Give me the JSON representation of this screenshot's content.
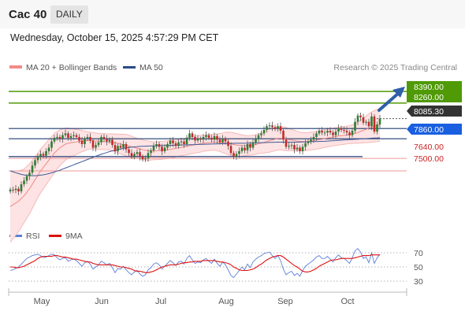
{
  "header": {
    "title": "Cac 40",
    "interval": "DAILY"
  },
  "timestamp": "Wednesday, October 15, 2025 4:57:29 PM CET",
  "legend": {
    "bollinger": {
      "label": "MA 20 + Bollinger Bands",
      "color": "#f08a8a"
    },
    "ma50": {
      "label": "MA 50",
      "color": "#2a4a8a"
    }
  },
  "credit": "Research © 2025 Trading Central",
  "rsi_legend": {
    "rsi": {
      "label": "RSI",
      "color": "#5b7fd8"
    },
    "ma9": {
      "label": "9MA",
      "color": "#e01010"
    }
  },
  "levels": [
    {
      "label": "8390.00",
      "price": 8390,
      "style": "green"
    },
    {
      "label": "8260.00",
      "price": 8260,
      "style": "green"
    },
    {
      "label": "8085.30",
      "price": 8085.3,
      "style": "dark"
    },
    {
      "label": "7860.00",
      "price": 7860,
      "style": "blue"
    },
    {
      "label": "7640.00",
      "price": 7640,
      "style": "red"
    },
    {
      "label": "7500.00",
      "price": 7500,
      "style": "red"
    }
  ],
  "colors": {
    "green": "#4f9a06",
    "blue": "#1a5fe0",
    "dark": "#333333",
    "red": "#cc2222",
    "candle_up": "#2e7d32",
    "candle_down": "#c62828",
    "band_fill": "#fde3e3",
    "hline": "#1f3b73",
    "arrow": "#2f5fa8"
  },
  "chart_data": [
    {
      "type": "candlestick",
      "title": "Cac 40",
      "x_labels": [
        "May",
        "Jun",
        "Jul",
        "Aug",
        "Sep",
        "Oct"
      ],
      "ylim": [
        6900,
        8550
      ],
      "series": [
        {
          "name": "MA 20 + Bollinger Bands"
        },
        {
          "name": "MA 50"
        }
      ],
      "close": [
        7290,
        7285,
        7300,
        7270,
        7350,
        7390,
        7440,
        7480,
        7560,
        7620,
        7660,
        7690,
        7670,
        7720,
        7760,
        7830,
        7870,
        7880,
        7860,
        7900,
        7920,
        7870,
        7890,
        7900,
        7880,
        7840,
        7800,
        7860,
        7880,
        7840,
        7760,
        7790,
        7820,
        7880,
        7860,
        7830,
        7850,
        7790,
        7720,
        7780,
        7760,
        7800,
        7740,
        7700,
        7660,
        7690,
        7710,
        7660,
        7630,
        7640,
        7700,
        7730,
        7780,
        7800,
        7770,
        7720,
        7760,
        7800,
        7840,
        7810,
        7780,
        7820,
        7830,
        7800,
        7870,
        7920,
        7880,
        7840,
        7860,
        7850,
        7880,
        7900,
        7870,
        7850,
        7890,
        7850,
        7820,
        7860,
        7830,
        7780,
        7700,
        7660,
        7690,
        7720,
        7760,
        7730,
        7800,
        7760,
        7820,
        7860,
        7900,
        7920,
        7960,
        8000,
        8010,
        7990,
        7970,
        8000,
        7950,
        7850,
        7770,
        7780,
        7790,
        7740,
        7760,
        7720,
        7770,
        7810,
        7830,
        7850,
        7880,
        7920,
        7950,
        7930,
        7930,
        7950,
        7930,
        7900,
        7940,
        7980,
        7960,
        7950,
        7930,
        7900,
        7950,
        8050,
        8120,
        8100,
        8040,
        8050,
        8000,
        8110,
        7940,
        8020,
        8085
      ],
      "ma20": [
        7100,
        7120,
        7140,
        7160,
        7190,
        7220,
        7260,
        7300,
        7350,
        7400,
        7450,
        7500,
        7540,
        7580,
        7620,
        7660,
        7700,
        7730,
        7760,
        7780,
        7800,
        7810,
        7815,
        7820,
        7825,
        7830,
        7835,
        7835,
        7840,
        7840,
        7838,
        7835,
        7832,
        7830,
        7828,
        7826,
        7824,
        7820,
        7814,
        7808,
        7800,
        7795,
        7788,
        7780,
        7770,
        7762,
        7755,
        7746,
        7738,
        7730,
        7728,
        7726,
        7725,
        7726,
        7728,
        7730,
        7734,
        7738,
        7742,
        7746,
        7752,
        7758,
        7764,
        7770,
        7776,
        7782,
        7788,
        7794,
        7800,
        7805,
        7810,
        7814,
        7818,
        7820,
        7822,
        7820,
        7818,
        7815,
        7812,
        7808,
        7802,
        7796,
        7790,
        7786,
        7784,
        7783,
        7784,
        7786,
        7790,
        7796,
        7804,
        7812,
        7820,
        7830,
        7840,
        7848,
        7856,
        7864,
        7866,
        7862,
        7856,
        7850,
        7845,
        7840,
        7834,
        7830,
        7828,
        7828,
        7830,
        7834,
        7838,
        7844,
        7850,
        7856,
        7862,
        7868,
        7874,
        7880,
        7886,
        7890,
        7894,
        7898,
        7902,
        7906,
        7912,
        7920,
        7930,
        7942,
        7954,
        7966,
        7978,
        7990,
        8000,
        8008,
        8016
      ],
      "ma50": [
        7500,
        7490,
        7480,
        7470,
        7460,
        7455,
        7450,
        7448,
        7446,
        7446,
        7448,
        7452,
        7456,
        7462,
        7470,
        7478,
        7488,
        7498,
        7508,
        7520,
        7532,
        7544,
        7556,
        7568,
        7580,
        7592,
        7604,
        7616,
        7628,
        7640,
        7652,
        7664,
        7676,
        7686,
        7696,
        7706,
        7716,
        7724,
        7732,
        7740,
        7746,
        7752,
        7758,
        7762,
        7766,
        7770,
        7772,
        7774,
        7776,
        7777,
        7778,
        7779,
        7780,
        7781,
        7782,
        7783,
        7784,
        7785,
        7786,
        7787,
        7788,
        7789,
        7790,
        7791,
        7792,
        7793,
        7794,
        7795,
        7796,
        7797,
        7798,
        7799,
        7800,
        7801,
        7802,
        7803,
        7804,
        7805,
        7806,
        7807,
        7808,
        7809,
        7810,
        7810,
        7810,
        7810,
        7811,
        7812,
        7813,
        7814,
        7815,
        7816,
        7817,
        7818,
        7819,
        7820,
        7821,
        7822,
        7822,
        7822,
        7822,
        7822,
        7822,
        7822,
        7822,
        7823,
        7824,
        7825,
        7826,
        7827,
        7828,
        7829,
        7830,
        7831,
        7832,
        7834,
        7836,
        7838,
        7840,
        7842,
        7844,
        7846,
        7848,
        7850,
        7852,
        7854,
        7856,
        7858,
        7860,
        7862,
        7864,
        7866,
        7868,
        7870,
        7872
      ],
      "band_width": [
        400,
        380,
        360,
        340,
        320,
        300,
        290,
        280,
        270,
        260,
        250,
        245,
        240,
        235,
        230,
        225,
        220,
        210,
        200,
        190,
        180,
        170,
        160,
        150,
        140,
        130,
        120,
        110,
        100,
        95,
        90,
        90,
        90,
        90,
        90,
        90,
        90,
        95,
        100,
        105,
        110,
        115,
        120,
        120,
        120,
        115,
        110,
        110,
        110,
        110,
        110,
        105,
        100,
        100,
        100,
        100,
        100,
        100,
        100,
        100,
        95,
        95,
        95,
        95,
        95,
        95,
        95,
        95,
        95,
        95,
        90,
        90,
        90,
        90,
        90,
        95,
        100,
        110,
        120,
        125,
        130,
        130,
        130,
        125,
        120,
        115,
        110,
        110,
        110,
        110,
        110,
        115,
        120,
        125,
        130,
        130,
        130,
        130,
        130,
        130,
        130,
        125,
        120,
        115,
        110,
        105,
        100,
        100,
        100,
        100,
        100,
        100,
        100,
        100,
        100,
        100,
        100,
        100,
        100,
        100,
        100,
        100,
        100,
        100,
        105,
        110,
        120,
        130,
        140,
        150,
        160,
        170,
        175,
        180,
        185
      ],
      "levels": [
        8390,
        8260,
        8085.3,
        7860,
        7640,
        7500
      ]
    },
    {
      "type": "line",
      "title": "RSI",
      "yticks": [
        70,
        50,
        30
      ],
      "ylim": [
        20,
        80
      ],
      "series": [
        {
          "name": "RSI",
          "values": [
            45,
            46,
            48,
            50,
            54,
            58,
            62,
            64,
            66,
            67,
            68,
            66,
            63,
            64,
            66,
            68,
            67,
            63,
            60,
            62,
            63,
            58,
            60,
            61,
            59,
            55,
            51,
            56,
            58,
            54,
            47,
            50,
            53,
            58,
            56,
            53,
            55,
            49,
            42,
            48,
            47,
            51,
            46,
            42,
            39,
            43,
            45,
            40,
            37,
            39,
            46,
            49,
            54,
            56,
            53,
            47,
            51,
            55,
            59,
            56,
            52,
            57,
            58,
            54,
            62,
            66,
            60,
            55,
            57,
            56,
            60,
            62,
            58,
            55,
            61,
            55,
            51,
            57,
            53,
            46,
            38,
            35,
            40,
            45,
            50,
            46,
            54,
            49,
            57,
            61,
            64,
            66,
            69,
            70,
            71,
            66,
            62,
            66,
            59,
            47,
            39,
            42,
            44,
            38,
            41,
            37,
            45,
            51,
            54,
            57,
            60,
            64,
            66,
            62,
            62,
            65,
            61,
            57,
            63,
            67,
            63,
            62,
            59,
            55,
            63,
            73,
            76,
            71,
            62,
            64,
            56,
            70,
            55,
            63,
            68
          ]
        },
        {
          "name": "9MA",
          "values": [
            50,
            50,
            49,
            49,
            50,
            51,
            53,
            55,
            57,
            59,
            62,
            64,
            65,
            65,
            65,
            65,
            66,
            66,
            65,
            64,
            64,
            63,
            62,
            61,
            61,
            60,
            59,
            58,
            57,
            57,
            55,
            54,
            53,
            53,
            53,
            53,
            53,
            53,
            52,
            51,
            50,
            50,
            49,
            48,
            47,
            45,
            44,
            44,
            43,
            42,
            42,
            43,
            44,
            46,
            48,
            50,
            51,
            52,
            53,
            53,
            53,
            54,
            55,
            56,
            56,
            57,
            57,
            58,
            58,
            58,
            59,
            59,
            59,
            59,
            59,
            58,
            57,
            57,
            56,
            55,
            53,
            50,
            48,
            46,
            45,
            45,
            45,
            46,
            47,
            49,
            52,
            54,
            57,
            60,
            62,
            64,
            65,
            66,
            66,
            64,
            61,
            58,
            55,
            52,
            50,
            47,
            44,
            43,
            43,
            44,
            46,
            48,
            51,
            53,
            55,
            57,
            59,
            60,
            60,
            61,
            62,
            62,
            62,
            62,
            62,
            63,
            64,
            65,
            66,
            66,
            66,
            67,
            67,
            67,
            67
          ]
        }
      ]
    }
  ]
}
